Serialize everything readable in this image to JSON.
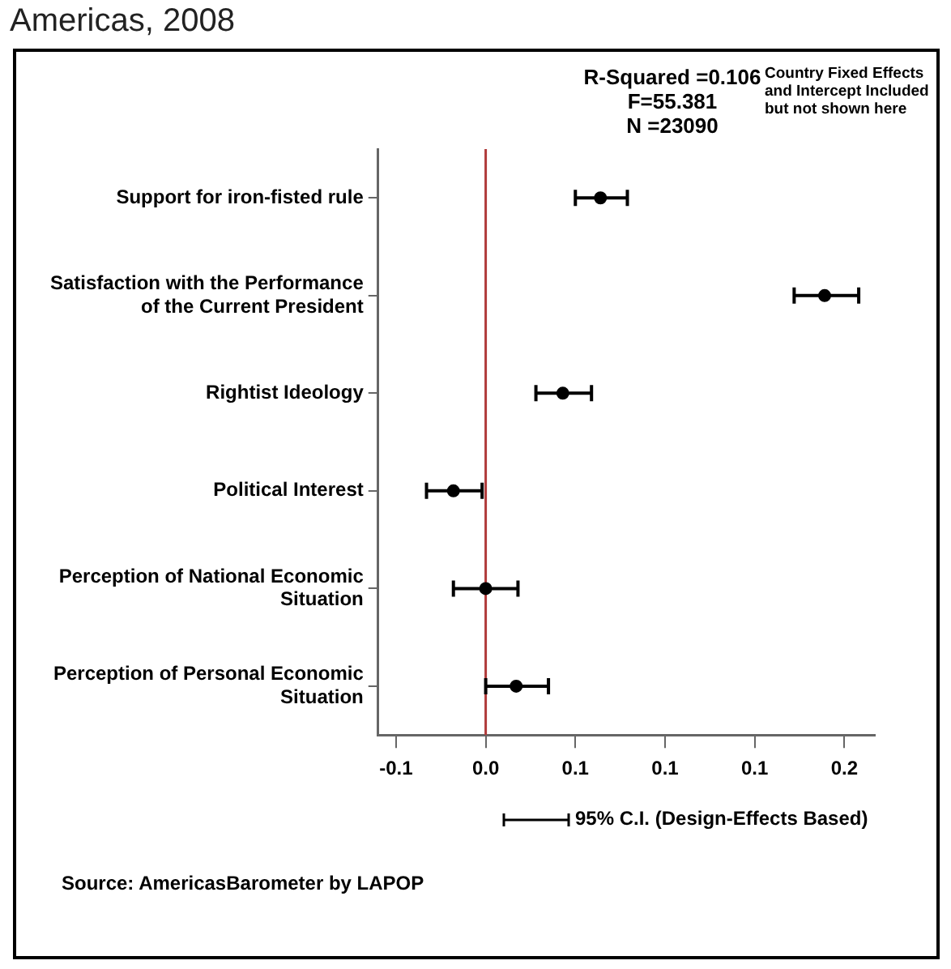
{
  "chart_data": {
    "type": "scatter",
    "title": "Americas, 2008",
    "categories": [
      "Support for iron-fisted rule",
      "Satisfaction with the Performance of the Current President",
      "Rightist Ideology",
      "Political Interest",
      "Perception of National Economic Situation",
      "Perception of Personal Economic Situation"
    ],
    "series": [
      {
        "color": "#000000",
        "values": [
          0.064,
          0.189,
          0.043,
          -0.018,
          0.0,
          0.017
        ],
        "errors": [
          [
            0.05,
            0.079
          ],
          [
            0.172,
            0.208
          ],
          [
            0.028,
            0.059
          ],
          [
            -0.033,
            -0.002
          ],
          [
            -0.018,
            0.018
          ],
          [
            0.0,
            0.035
          ]
        ]
      }
    ],
    "orientation": "horizontal",
    "xlim": [
      -0.06,
      0.217
    ],
    "xticks": [
      {
        "value": -0.05,
        "label": "-0.1"
      },
      {
        "value": 0,
        "label": "0.0"
      },
      {
        "value": 0.05,
        "label": "0.1"
      },
      0.1,
      {
        "value": 0.15,
        "label": "0.1"
      },
      0.2
    ],
    "ref_lines": [
      {
        "axis": "x",
        "value": 0,
        "color": "#b03a3a"
      }
    ],
    "annotations": [
      "R-Squared =0.106\nF=55.381\nN =23090",
      "Country Fixed Effects\nand Intercept Included\nbut not shown here",
      "95% C.I. (Design-Effects Based)",
      "Source: AmericasBarometer by LAPOP"
    ],
    "grid": false,
    "legend": false,
    "marker": "circle"
  }
}
